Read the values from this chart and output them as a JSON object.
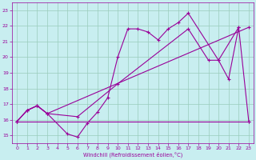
{
  "line1_x": [
    0,
    1,
    2,
    3,
    5,
    6,
    7,
    8,
    9,
    10,
    11,
    12,
    13,
    14,
    15,
    16,
    17,
    20,
    21,
    22
  ],
  "line1_y": [
    15.9,
    16.6,
    16.9,
    16.4,
    15.1,
    14.9,
    15.8,
    16.5,
    17.4,
    20.0,
    21.8,
    21.8,
    21.6,
    21.1,
    21.8,
    22.2,
    22.8,
    19.8,
    18.6,
    21.9
  ],
  "line2_x": [
    0,
    1,
    2,
    3,
    6,
    10,
    17,
    19,
    20,
    22,
    23
  ],
  "line2_y": [
    15.9,
    16.6,
    16.9,
    16.4,
    16.2,
    18.3,
    21.8,
    19.8,
    19.8,
    21.9,
    15.9
  ],
  "line3_x": [
    0,
    23
  ],
  "line3_y": [
    15.9,
    15.9
  ],
  "line4_x": [
    0,
    1,
    2,
    3,
    23
  ],
  "line4_y": [
    15.9,
    16.6,
    16.9,
    16.4,
    21.9
  ],
  "ylim": [
    14.5,
    23.5
  ],
  "xlim": [
    -0.5,
    23.5
  ],
  "yticks": [
    15,
    16,
    17,
    18,
    19,
    20,
    21,
    22,
    23
  ],
  "xticks": [
    0,
    1,
    2,
    3,
    4,
    5,
    6,
    7,
    8,
    9,
    10,
    11,
    12,
    13,
    14,
    15,
    16,
    17,
    18,
    19,
    20,
    21,
    22,
    23
  ],
  "xlabel": "Windchill (Refroidissement éolien,°C)",
  "bg_color": "#c8eef0",
  "line_color": "#990099",
  "grid_color": "#99ccbb",
  "marker": "+"
}
